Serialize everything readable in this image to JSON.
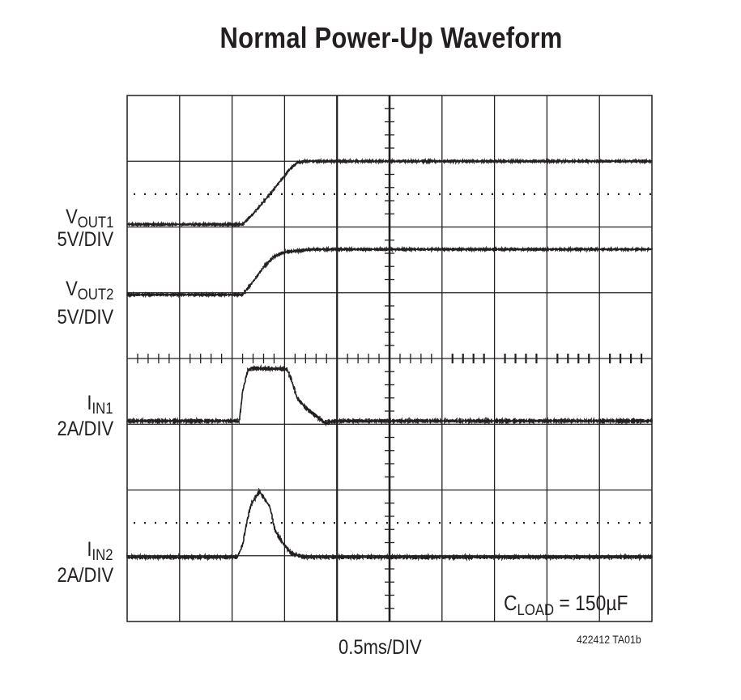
{
  "chart_data": {
    "type": "line",
    "title": "Normal Power-Up Waveform",
    "xlabel": "0.5ms/DIV",
    "x_units": "ms",
    "xlim": [
      0,
      5
    ],
    "grid": true,
    "grid_divisions": {
      "x": 10,
      "y": 8
    },
    "annotation": {
      "main": "C",
      "sub": "LOAD",
      "rest": " = 150µF"
    },
    "figure_code": "422412 TA01b",
    "series": [
      {
        "name": "VOUT1",
        "label_main": "V",
        "label_sub": "OUT1",
        "scale": "5V/DIV",
        "units_per_div": 5,
        "ground_div_from_top": 1.96,
        "points": [
          [
            0,
            0
          ],
          [
            1.1,
            0
          ],
          [
            1.2,
            0.8
          ],
          [
            1.35,
            2.2
          ],
          [
            1.45,
            3.2
          ],
          [
            1.55,
            4.2
          ],
          [
            1.62,
            4.7
          ],
          [
            1.7,
            4.8
          ],
          [
            5,
            4.8
          ]
        ]
      },
      {
        "name": "VOUT2",
        "label_main": "V",
        "label_sub": "OUT2",
        "scale": "5V/DIV",
        "units_per_div": 5,
        "ground_div_from_top": 3.03,
        "points": [
          [
            0,
            0
          ],
          [
            1.1,
            0
          ],
          [
            1.2,
            1.0
          ],
          [
            1.3,
            2.1
          ],
          [
            1.4,
            2.9
          ],
          [
            1.5,
            3.25
          ],
          [
            1.65,
            3.35
          ],
          [
            1.75,
            3.45
          ],
          [
            5,
            3.45
          ]
        ]
      },
      {
        "name": "IIN1",
        "label_main": "I",
        "label_sub": "IN1",
        "scale": "2A/DIV",
        "units_per_div": 2,
        "ground_div_from_top": 4.95,
        "points": [
          [
            0,
            0
          ],
          [
            1.07,
            0
          ],
          [
            1.1,
            0.9
          ],
          [
            1.15,
            1.55
          ],
          [
            1.2,
            1.6
          ],
          [
            1.52,
            1.58
          ],
          [
            1.56,
            1.3
          ],
          [
            1.62,
            0.7
          ],
          [
            1.7,
            0.4
          ],
          [
            1.8,
            0.15
          ],
          [
            1.88,
            -0.05
          ],
          [
            2.0,
            0
          ],
          [
            5,
            0
          ]
        ]
      },
      {
        "name": "IIN2",
        "label_main": "I",
        "label_sub": "IN2",
        "scale": "2A/DIV",
        "units_per_div": 2,
        "ground_div_from_top": 7.02,
        "points": [
          [
            0,
            0
          ],
          [
            1.05,
            0
          ],
          [
            1.1,
            0.37
          ],
          [
            1.14,
            1.06
          ],
          [
            1.18,
            1.6
          ],
          [
            1.26,
            2.0
          ],
          [
            1.36,
            1.53
          ],
          [
            1.41,
            0.8
          ],
          [
            1.49,
            0.4
          ],
          [
            1.56,
            0.12
          ],
          [
            1.68,
            0
          ],
          [
            5,
            0
          ]
        ]
      }
    ],
    "dotted_reference_divs": [
      1.5,
      6.5
    ]
  }
}
